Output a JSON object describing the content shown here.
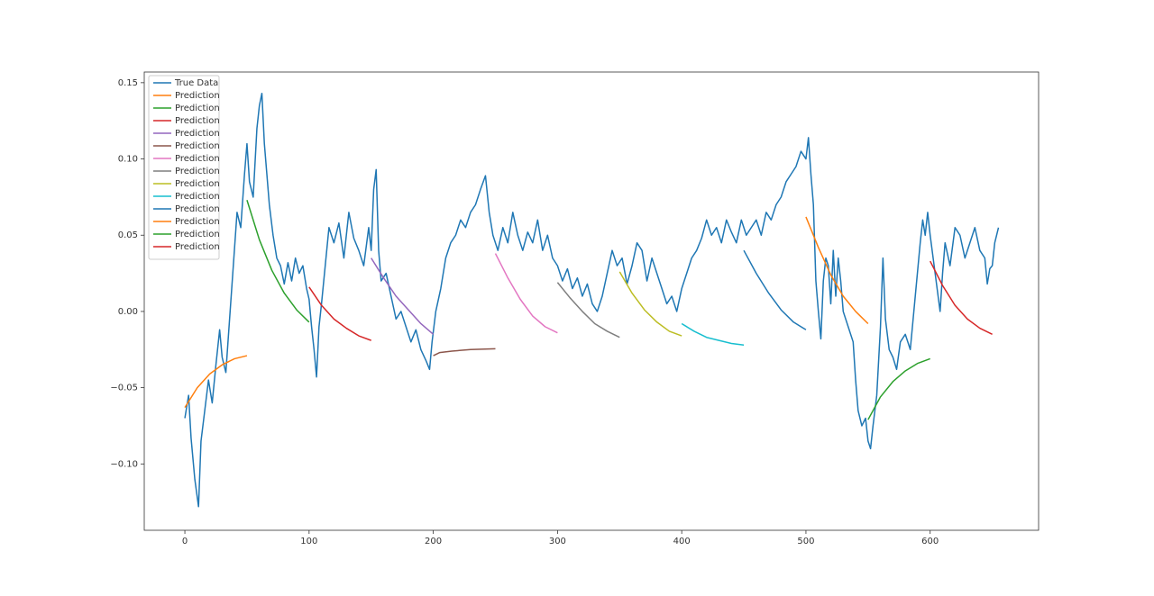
{
  "chart_data": {
    "type": "line",
    "legend": "upper left",
    "grid": false,
    "xlim": [
      -32.7,
      687.3
    ],
    "ylim": [
      -0.1435,
      0.157
    ],
    "xticks": [
      0,
      100,
      200,
      300,
      400,
      500,
      600
    ],
    "yticks": [
      {
        "value": -0.1,
        "label": "−0.10"
      },
      {
        "value": -0.05,
        "label": "−0.05"
      },
      {
        "value": 0,
        "label": "0.00"
      },
      {
        "value": 0.05,
        "label": "0.05"
      },
      {
        "value": 0.1,
        "label": "0.10"
      },
      {
        "value": 0.15,
        "label": "0.15"
      }
    ],
    "series": [
      {
        "name": "True Data",
        "color": "#1f77b4",
        "x": [
          0,
          3,
          5,
          8,
          11,
          13,
          16,
          19,
          22,
          25,
          28,
          30,
          33,
          36,
          39,
          42,
          45,
          48,
          50,
          52,
          55,
          58,
          60,
          62,
          64,
          66,
          68,
          71,
          74,
          77,
          80,
          83,
          86,
          89,
          92,
          95,
          98,
          100,
          102,
          104,
          106,
          108,
          110,
          113,
          116,
          120,
          124,
          128,
          132,
          136,
          140,
          144,
          148,
          150,
          152,
          154,
          156,
          158,
          162,
          166,
          170,
          174,
          178,
          182,
          186,
          190,
          194,
          197,
          199,
          202,
          206,
          210,
          214,
          218,
          222,
          226,
          230,
          234,
          238,
          242,
          245,
          248,
          252,
          256,
          260,
          264,
          268,
          272,
          276,
          280,
          284,
          288,
          292,
          296,
          300,
          304,
          308,
          312,
          316,
          320,
          324,
          328,
          332,
          336,
          340,
          344,
          348,
          352,
          356,
          360,
          364,
          368,
          372,
          376,
          380,
          384,
          388,
          392,
          396,
          400,
          404,
          408,
          412,
          416,
          420,
          424,
          428,
          432,
          436,
          440,
          444,
          448,
          452,
          456,
          460,
          464,
          468,
          472,
          476,
          480,
          484,
          488,
          492,
          496,
          500,
          502,
          504,
          506,
          508,
          510,
          512,
          514,
          516,
          518,
          520,
          522,
          524,
          526,
          528,
          530,
          534,
          538,
          540,
          542,
          545,
          548,
          550,
          552,
          554,
          557,
          560,
          562,
          564,
          567,
          570,
          573,
          576,
          580,
          584,
          588,
          592,
          594,
          596,
          598,
          600,
          604,
          608,
          610,
          612,
          616,
          620,
          624,
          628,
          632,
          636,
          640,
          644,
          646,
          648,
          650,
          652,
          655
        ],
        "values": [
          -0.07,
          -0.055,
          -0.083,
          -0.11,
          -0.128,
          -0.085,
          -0.065,
          -0.045,
          -0.06,
          -0.035,
          -0.012,
          -0.03,
          -0.04,
          -0.005,
          0.03,
          0.065,
          0.055,
          0.09,
          0.11,
          0.085,
          0.075,
          0.12,
          0.135,
          0.143,
          0.11,
          0.09,
          0.07,
          0.05,
          0.035,
          0.03,
          0.018,
          0.032,
          0.02,
          0.035,
          0.025,
          0.03,
          0.015,
          0.008,
          -0.01,
          -0.025,
          -0.043,
          -0.01,
          0.005,
          0.03,
          0.055,
          0.045,
          0.058,
          0.035,
          0.065,
          0.048,
          0.04,
          0.03,
          0.055,
          0.04,
          0.08,
          0.093,
          0.04,
          0.02,
          0.025,
          0.01,
          -0.005,
          0.0,
          -0.01,
          -0.02,
          -0.012,
          -0.025,
          -0.032,
          -0.038,
          -0.02,
          0.0,
          0.015,
          0.035,
          0.045,
          0.05,
          0.06,
          0.055,
          0.065,
          0.07,
          0.08,
          0.089,
          0.065,
          0.05,
          0.04,
          0.055,
          0.045,
          0.065,
          0.05,
          0.04,
          0.052,
          0.045,
          0.06,
          0.04,
          0.05,
          0.035,
          0.03,
          0.02,
          0.028,
          0.015,
          0.022,
          0.01,
          0.018,
          0.005,
          0.0,
          0.01,
          0.025,
          0.04,
          0.03,
          0.035,
          0.018,
          0.03,
          0.045,
          0.04,
          0.02,
          0.035,
          0.025,
          0.015,
          0.005,
          0.01,
          0.0,
          0.015,
          0.025,
          0.035,
          0.04,
          0.048,
          0.06,
          0.05,
          0.055,
          0.045,
          0.06,
          0.052,
          0.045,
          0.06,
          0.05,
          0.055,
          0.06,
          0.05,
          0.065,
          0.06,
          0.07,
          0.075,
          0.085,
          0.09,
          0.095,
          0.105,
          0.1,
          0.114,
          0.09,
          0.07,
          0.02,
          0.0,
          -0.018,
          0.02,
          0.035,
          0.03,
          0.005,
          0.04,
          0.01,
          0.035,
          0.02,
          0.0,
          -0.01,
          -0.02,
          -0.045,
          -0.065,
          -0.075,
          -0.07,
          -0.085,
          -0.09,
          -0.075,
          -0.055,
          -0.01,
          0.035,
          -0.005,
          -0.025,
          -0.03,
          -0.038,
          -0.02,
          -0.015,
          -0.025,
          0.01,
          0.045,
          0.06,
          0.05,
          0.065,
          0.05,
          0.025,
          0.0,
          0.025,
          0.045,
          0.03,
          0.055,
          0.05,
          0.035,
          0.045,
          0.055,
          0.04,
          0.035,
          0.018,
          0.028,
          0.03,
          0.045,
          0.055
        ]
      },
      {
        "name": "Prediction",
        "color": "#ff7f0e",
        "x": [
          0,
          10,
          20,
          30,
          40,
          50
        ],
        "values": [
          -0.063,
          -0.05,
          -0.041,
          -0.035,
          -0.031,
          -0.029
        ]
      },
      {
        "name": "Prediction",
        "color": "#2ca02c",
        "x": [
          50,
          60,
          70,
          80,
          90,
          100
        ],
        "values": [
          0.073,
          0.047,
          0.027,
          0.012,
          0.001,
          -0.007
        ]
      },
      {
        "name": "Prediction",
        "color": "#d62728",
        "x": [
          100,
          110,
          120,
          130,
          140,
          150
        ],
        "values": [
          0.016,
          0.004,
          -0.005,
          -0.011,
          -0.016,
          -0.019
        ]
      },
      {
        "name": "Prediction",
        "color": "#9467bd",
        "x": [
          150,
          160,
          170,
          180,
          190,
          200
        ],
        "values": [
          0.035,
          0.022,
          0.01,
          0.001,
          -0.008,
          -0.015
        ]
      },
      {
        "name": "Prediction",
        "color": "#8c564b",
        "x": [
          200,
          205,
          215,
          230,
          250
        ],
        "values": [
          -0.029,
          -0.027,
          -0.026,
          -0.025,
          -0.0245
        ]
      },
      {
        "name": "Prediction",
        "color": "#e377c2",
        "x": [
          250,
          260,
          270,
          280,
          290,
          300
        ],
        "values": [
          0.038,
          0.022,
          0.008,
          -0.003,
          -0.01,
          -0.014
        ]
      },
      {
        "name": "Prediction",
        "color": "#7f7f7f",
        "x": [
          300,
          310,
          320,
          330,
          340,
          350
        ],
        "values": [
          0.019,
          0.009,
          0.0,
          -0.008,
          -0.013,
          -0.017
        ]
      },
      {
        "name": "Prediction",
        "color": "#bcbd22",
        "x": [
          350,
          360,
          370,
          380,
          390,
          400
        ],
        "values": [
          0.026,
          0.012,
          0.001,
          -0.007,
          -0.013,
          -0.016
        ]
      },
      {
        "name": "Prediction",
        "color": "#17becf",
        "x": [
          400,
          410,
          420,
          430,
          440,
          450
        ],
        "values": [
          -0.008,
          -0.013,
          -0.017,
          -0.019,
          -0.021,
          -0.022
        ]
      },
      {
        "name": "Prediction",
        "color": "#1f77b4",
        "x": [
          450,
          460,
          470,
          480,
          490,
          500
        ],
        "values": [
          0.04,
          0.025,
          0.012,
          0.001,
          -0.007,
          -0.012
        ]
      },
      {
        "name": "Prediction",
        "color": "#ff7f0e",
        "x": [
          500,
          510,
          520,
          530,
          540,
          550
        ],
        "values": [
          0.062,
          0.042,
          0.024,
          0.01,
          0.0,
          -0.008
        ]
      },
      {
        "name": "Prediction",
        "color": "#2ca02c",
        "x": [
          550,
          560,
          570,
          580,
          590,
          600
        ],
        "values": [
          -0.071,
          -0.056,
          -0.046,
          -0.039,
          -0.034,
          -0.031
        ]
      },
      {
        "name": "Prediction",
        "color": "#d62728",
        "x": [
          600,
          610,
          620,
          630,
          640,
          650
        ],
        "values": [
          0.033,
          0.017,
          0.004,
          -0.005,
          -0.011,
          -0.015
        ]
      }
    ]
  }
}
